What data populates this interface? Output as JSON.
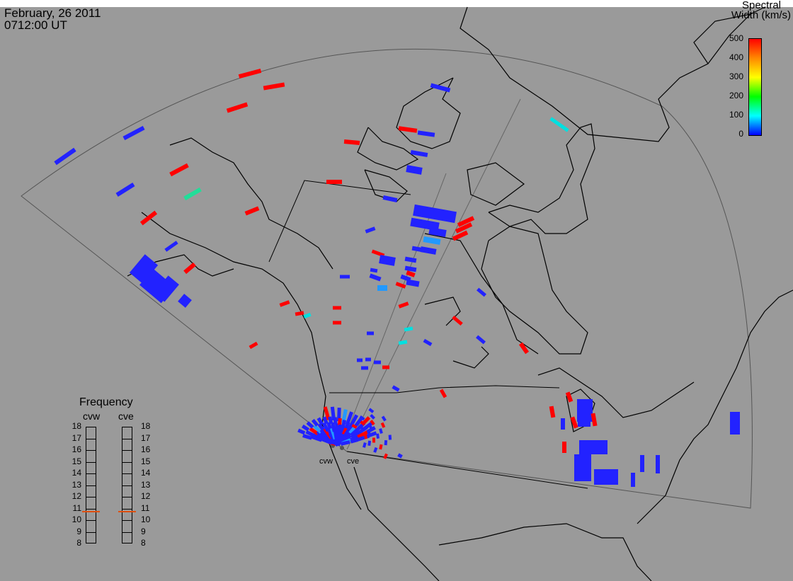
{
  "header": {
    "date": "February, 26 2011",
    "time": "0712:00 UT"
  },
  "colorbar": {
    "title_line1": "Spectral",
    "title_line2": "Width (km/s)",
    "ticks": [
      "500",
      "400",
      "300",
      "200",
      "100",
      "0"
    ],
    "range": [
      0,
      500
    ],
    "stops": [
      "#0000ff",
      "#00ffff",
      "#00ff00",
      "#ffff00",
      "#ff8800",
      "#ff0000"
    ]
  },
  "frequency_panel": {
    "title": "Frequency",
    "radar_left": "cvw",
    "radar_right": "cve",
    "ticks": [
      "18",
      "17",
      "16",
      "15",
      "14",
      "13",
      "12",
      "11",
      "10",
      "9",
      "8"
    ],
    "cvw_value_mhz": 10.8,
    "cve_value_mhz": 10.8,
    "marker_color": "#e05010"
  },
  "sites": {
    "west": "cvw",
    "east": "cve"
  },
  "colors": {
    "background": "#9a9a9a",
    "coastline": "#000000",
    "fov_outline": "#555555",
    "red": "#ff0000",
    "blue": "#2222ff",
    "cyan": "#00e0e0",
    "teal": "#22dd99",
    "lightblue": "#2299ff",
    "skyblue": "#3399ff"
  }
}
